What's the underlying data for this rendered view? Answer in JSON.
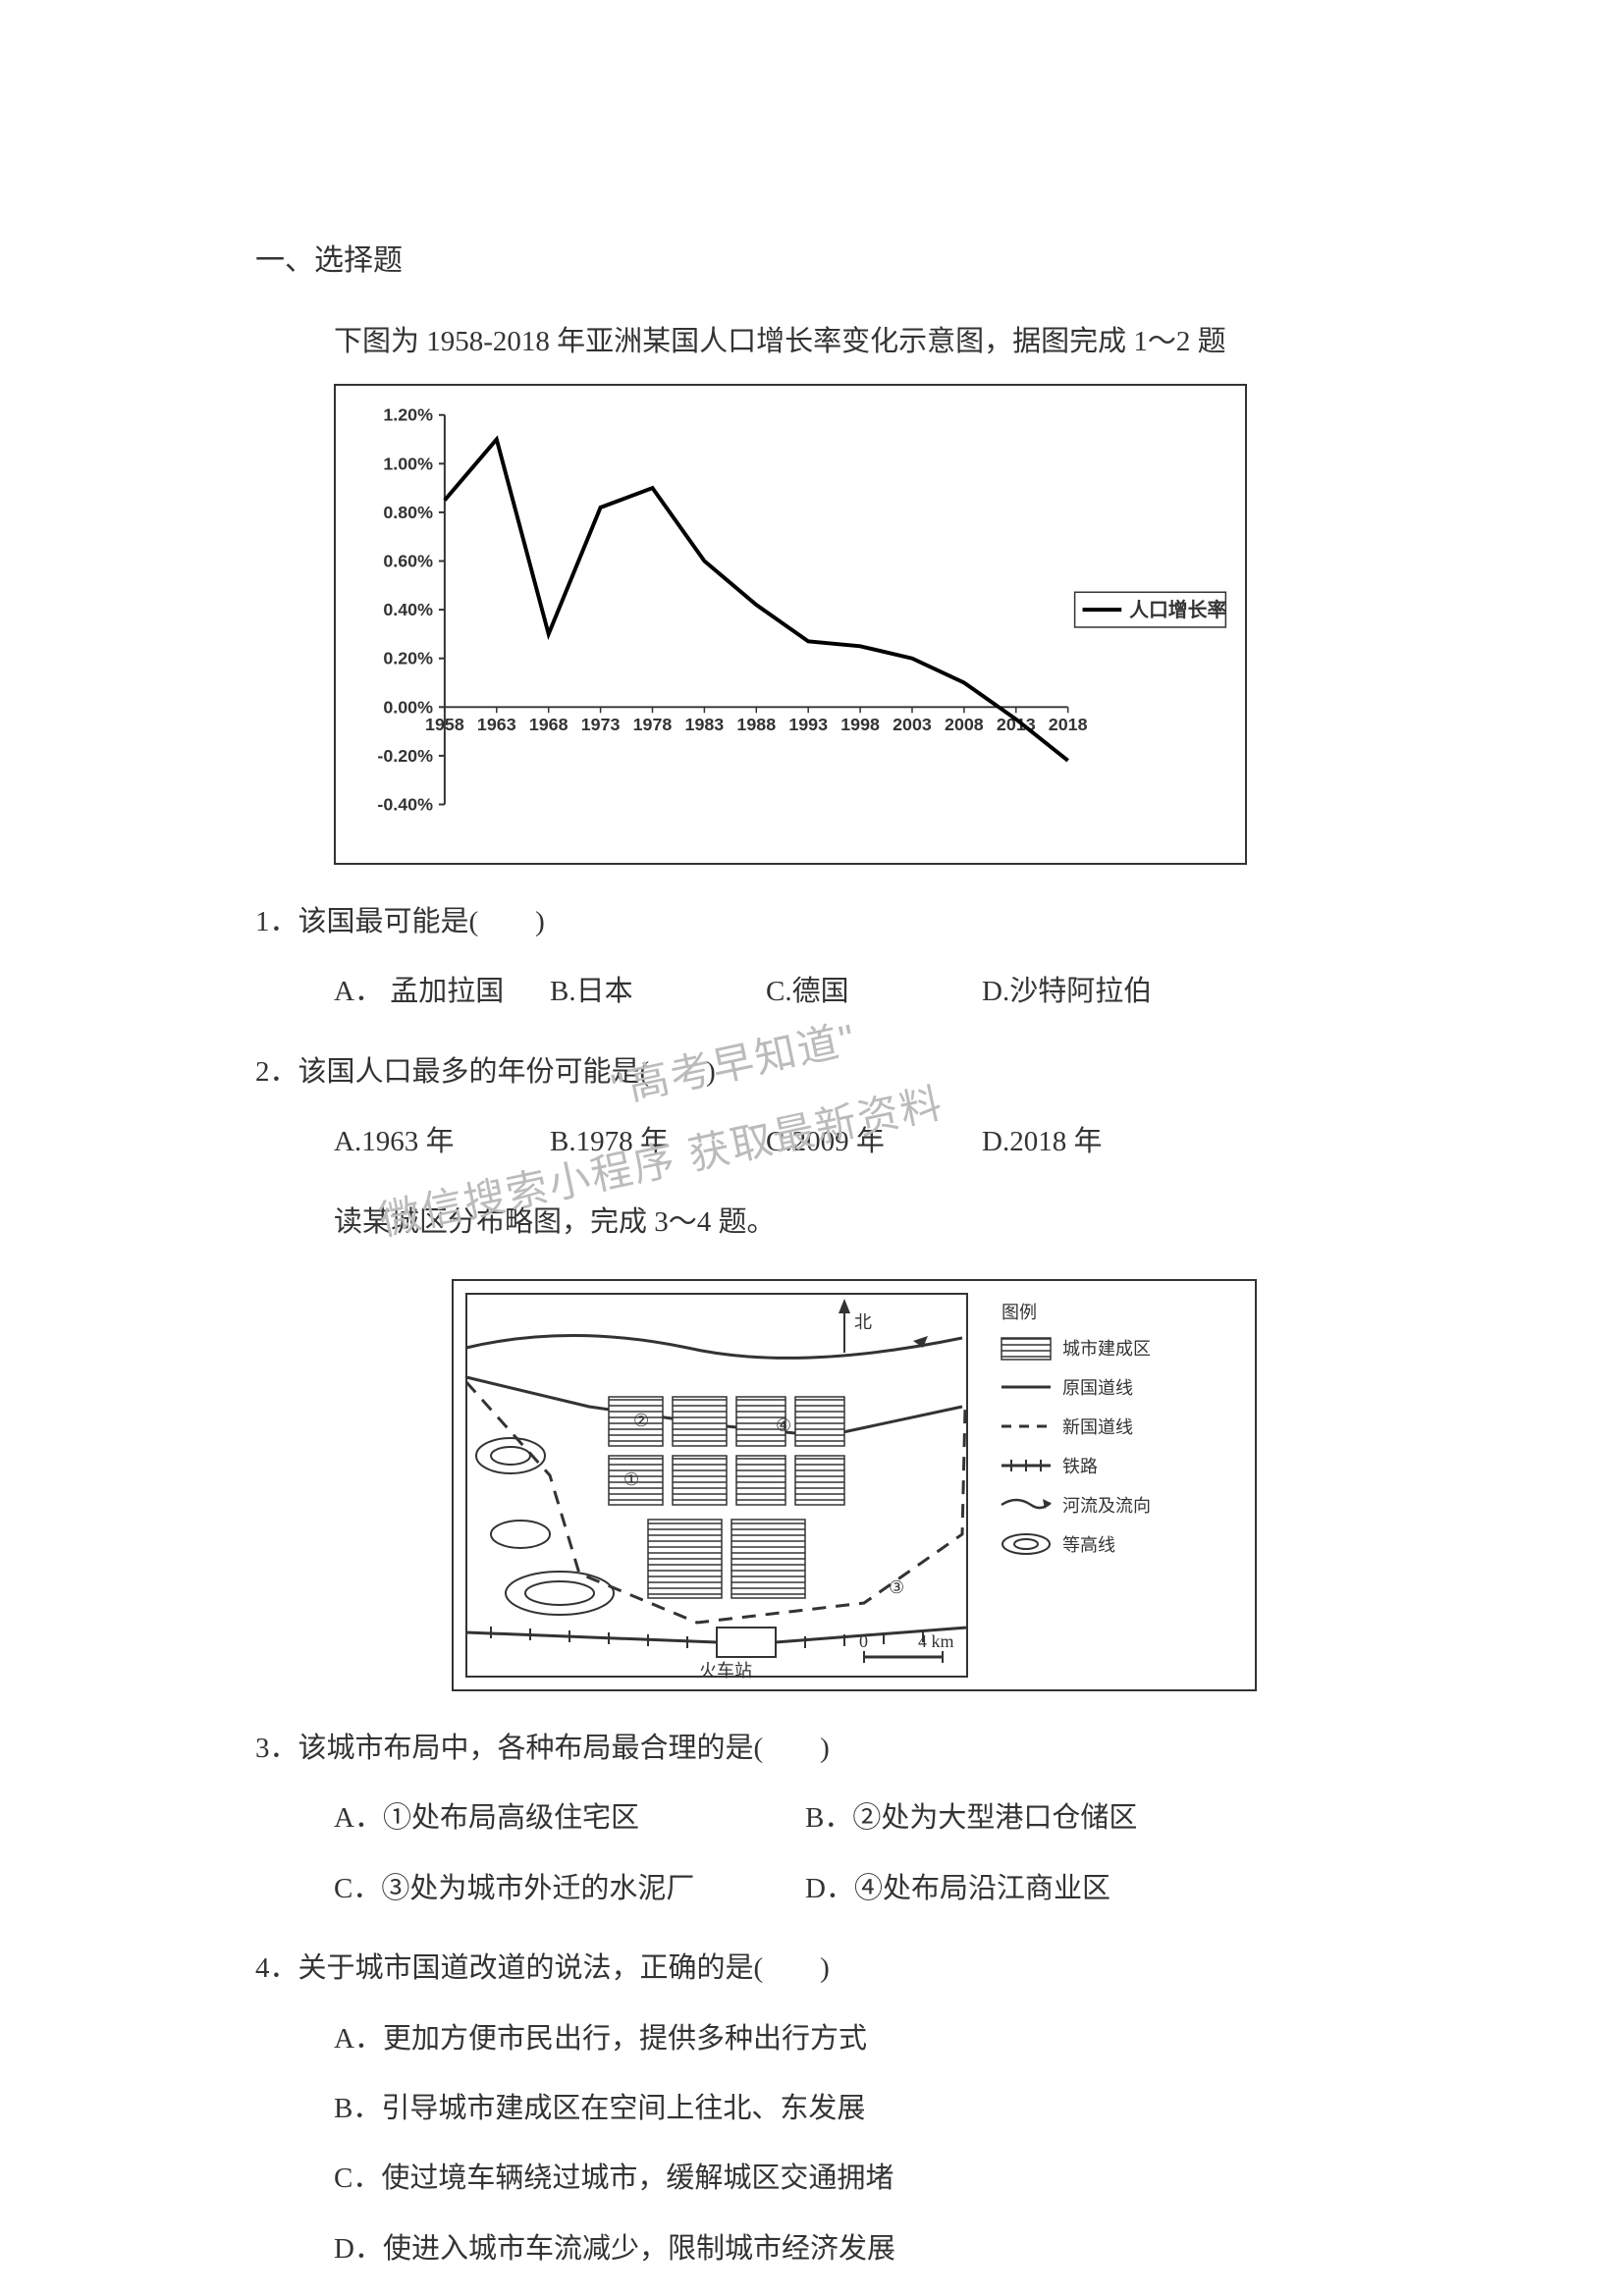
{
  "section_title": "一、选择题",
  "intro1": "下图为 1958-2018 年亚洲某国人口增长率变化示意图，据图完成 1～2 题",
  "chart1": {
    "type": "line",
    "series_label": "人口增长率",
    "x_labels": [
      "1958",
      "1963",
      "1968",
      "1973",
      "1978",
      "1983",
      "1988",
      "1993",
      "1998",
      "2003",
      "2008",
      "2013",
      "2018"
    ],
    "y_ticks": [
      "-0.40%",
      "-0.20%",
      "0.00%",
      "0.20%",
      "0.40%",
      "0.60%",
      "0.80%",
      "1.00%",
      "1.20%"
    ],
    "y_values_pct": [
      0.85,
      1.1,
      0.3,
      0.82,
      0.9,
      0.6,
      0.42,
      0.27,
      0.25,
      0.2,
      0.1,
      -0.05,
      -0.22
    ],
    "ylim": [
      -0.4,
      1.2
    ],
    "line_color": "#000000",
    "line_width": 4,
    "border_color": "#333333",
    "bg_color": "#ffffff",
    "axis_color": "#333333",
    "tick_fontsize": 18,
    "legend_box_border": "#333333"
  },
  "q1": {
    "stem": "1．该国最可能是(　　)",
    "opts": {
      "a": "A．  孟加拉国",
      "b": "B.日本",
      "c": "C.德国",
      "d": "D.沙特阿拉伯"
    }
  },
  "q2": {
    "stem": "2．该国人口最多的年份可能是(　　)",
    "opts": {
      "a": "A.1963 年",
      "b": "B.1978 年",
      "c": "C.2009 年",
      "d": "D.2018 年"
    }
  },
  "intro2": "读某城区分布略图，完成 3～4 题。",
  "map": {
    "type": "schematic-map",
    "labels": {
      "station": "火车站",
      "legend_title": "图例",
      "built": "城市建成区",
      "old_road": "原国道线",
      "new_road": "新国道线",
      "rail": "铁路",
      "river": "河流及流向",
      "contour": "等高线",
      "scale_0": "0",
      "scale_4": "4 km"
    },
    "markers": [
      "①",
      "②",
      "③",
      "④"
    ],
    "colors": {
      "border": "#333333",
      "fill_hatch": "#333333",
      "bg": "#ffffff",
      "road": "#333333",
      "dash": "#333333"
    }
  },
  "q3": {
    "stem": "3．该城市布局中，各种布局最合理的是(　　)",
    "opts": {
      "a": "A．①处布局高级住宅区",
      "b": "B．②处为大型港口仓储区",
      "c": "C．③处为城市外迁的水泥厂",
      "d": "D．④处布局沿江商业区"
    }
  },
  "q4": {
    "stem": "4．关于城市国道改道的说法，正确的是(　　)",
    "opts": {
      "a": "A．更加方便市民出行，提供多种出行方式",
      "b": "B．引导城市建成区在空间上往北、东发展",
      "c": "C．使过境车辆绕过城市，缓解城区交通拥堵",
      "d": "D．使进入城市车流减少，限制城市经济发展"
    }
  },
  "watermarks": {
    "wm1": "\"高考早知道\"",
    "wm2": "微信搜索小程序  获取最新资料"
  }
}
